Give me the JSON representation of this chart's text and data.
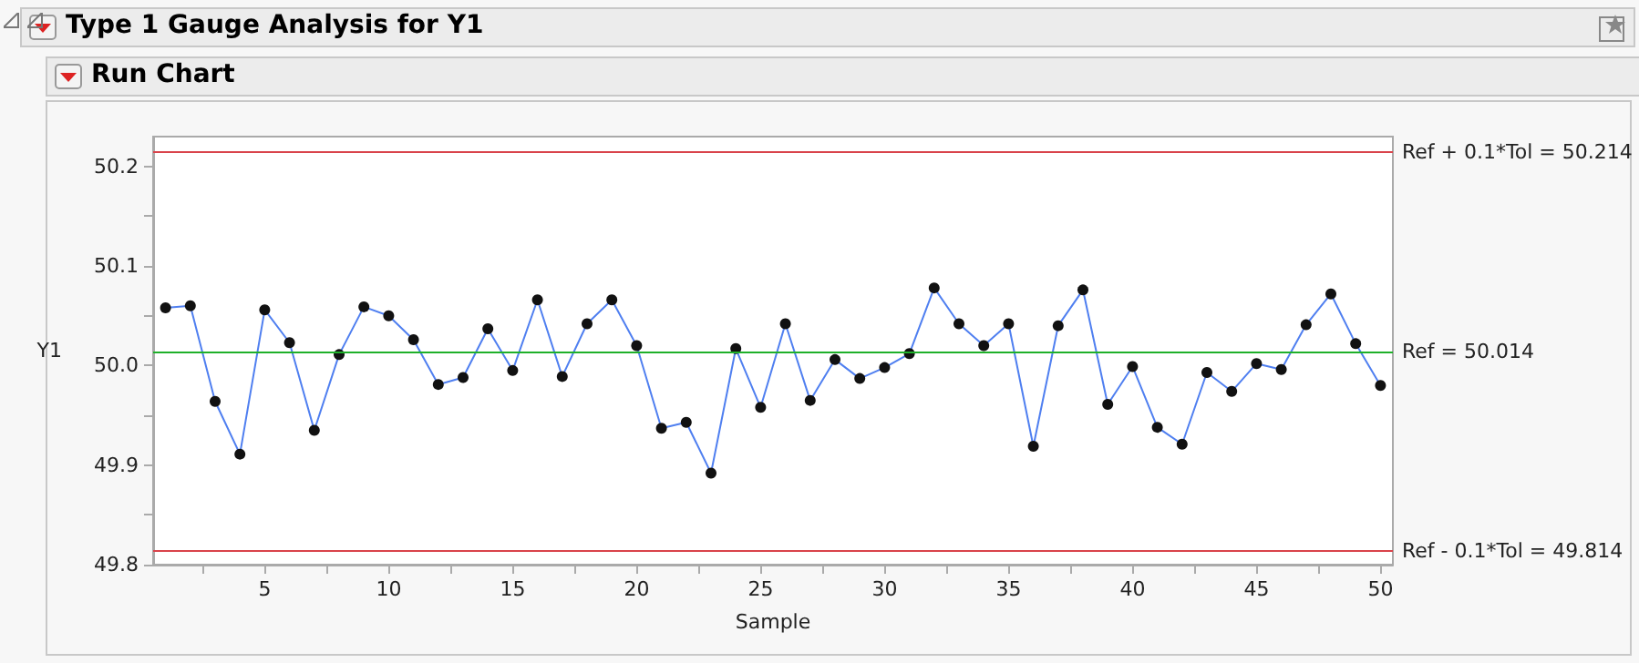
{
  "chart_data": {
    "type": "line",
    "title": "Type 1 Gauge Analysis for Y1",
    "subtitle": "Run Chart",
    "xlabel": "Sample",
    "ylabel": "Y1",
    "x": [
      1,
      2,
      3,
      4,
      5,
      6,
      7,
      8,
      9,
      10,
      11,
      12,
      13,
      14,
      15,
      16,
      17,
      18,
      19,
      20,
      21,
      22,
      23,
      24,
      25,
      26,
      27,
      28,
      29,
      30,
      31,
      32,
      33,
      34,
      35,
      36,
      37,
      38,
      39,
      40,
      41,
      42,
      43,
      44,
      45,
      46,
      47,
      48,
      49,
      50
    ],
    "series": [
      {
        "color": "#4f7ff0",
        "values": [
          50.058,
          50.06,
          49.964,
          49.911,
          50.056,
          50.023,
          49.935,
          50.011,
          50.059,
          50.05,
          50.026,
          49.981,
          49.988,
          50.037,
          49.995,
          50.066,
          49.989,
          50.042,
          50.066,
          50.02,
          49.937,
          49.943,
          49.892,
          50.017,
          49.958,
          50.042,
          49.965,
          50.006,
          49.987,
          49.998,
          50.012,
          50.078,
          50.042,
          50.02,
          50.042,
          49.919,
          50.04,
          50.076,
          49.961,
          49.999,
          49.938,
          49.921,
          49.993,
          49.974,
          50.002,
          49.996,
          50.041,
          50.072,
          50.022,
          49.98
        ]
      }
    ],
    "xlim": [
      0.5,
      50.5
    ],
    "ylim": [
      49.8,
      50.23
    ],
    "xticks": [
      {
        "value": 2.5,
        "label": null
      },
      5,
      {
        "value": 7.5,
        "label": null
      },
      10,
      {
        "value": 12.5,
        "label": null
      },
      15,
      {
        "value": 17.5,
        "label": null
      },
      20,
      {
        "value": 22.5,
        "label": null
      },
      25,
      {
        "value": 27.5,
        "label": null
      },
      30,
      {
        "value": 32.5,
        "label": null
      },
      35,
      {
        "value": 37.5,
        "label": null
      },
      40,
      {
        "value": 42.5,
        "label": null
      },
      45,
      {
        "value": 47.5,
        "label": null
      },
      50
    ],
    "yticks": [
      49.8,
      {
        "value": 49.85,
        "label": null
      },
      49.9,
      {
        "value": 49.95,
        "label": null
      },
      {
        "value": 50,
        "label": "50.0"
      },
      {
        "value": 50.05,
        "label": null
      },
      50.1,
      {
        "value": 50.15,
        "label": null
      },
      50.2
    ],
    "ref_lines": [
      {
        "axis": "y",
        "value": 50.214,
        "label": "Ref + 0.1*Tol = 50.214",
        "color": "#d9434b"
      },
      {
        "axis": "y",
        "value": 50.014,
        "label": "Ref = 50.014",
        "color": "#1fb02a"
      },
      {
        "axis": "y",
        "value": 49.814,
        "label": "Ref - 0.1*Tol = 49.814",
        "color": "#d9434b"
      }
    ],
    "grid": false,
    "marker": "circle",
    "line_style": "solid"
  }
}
